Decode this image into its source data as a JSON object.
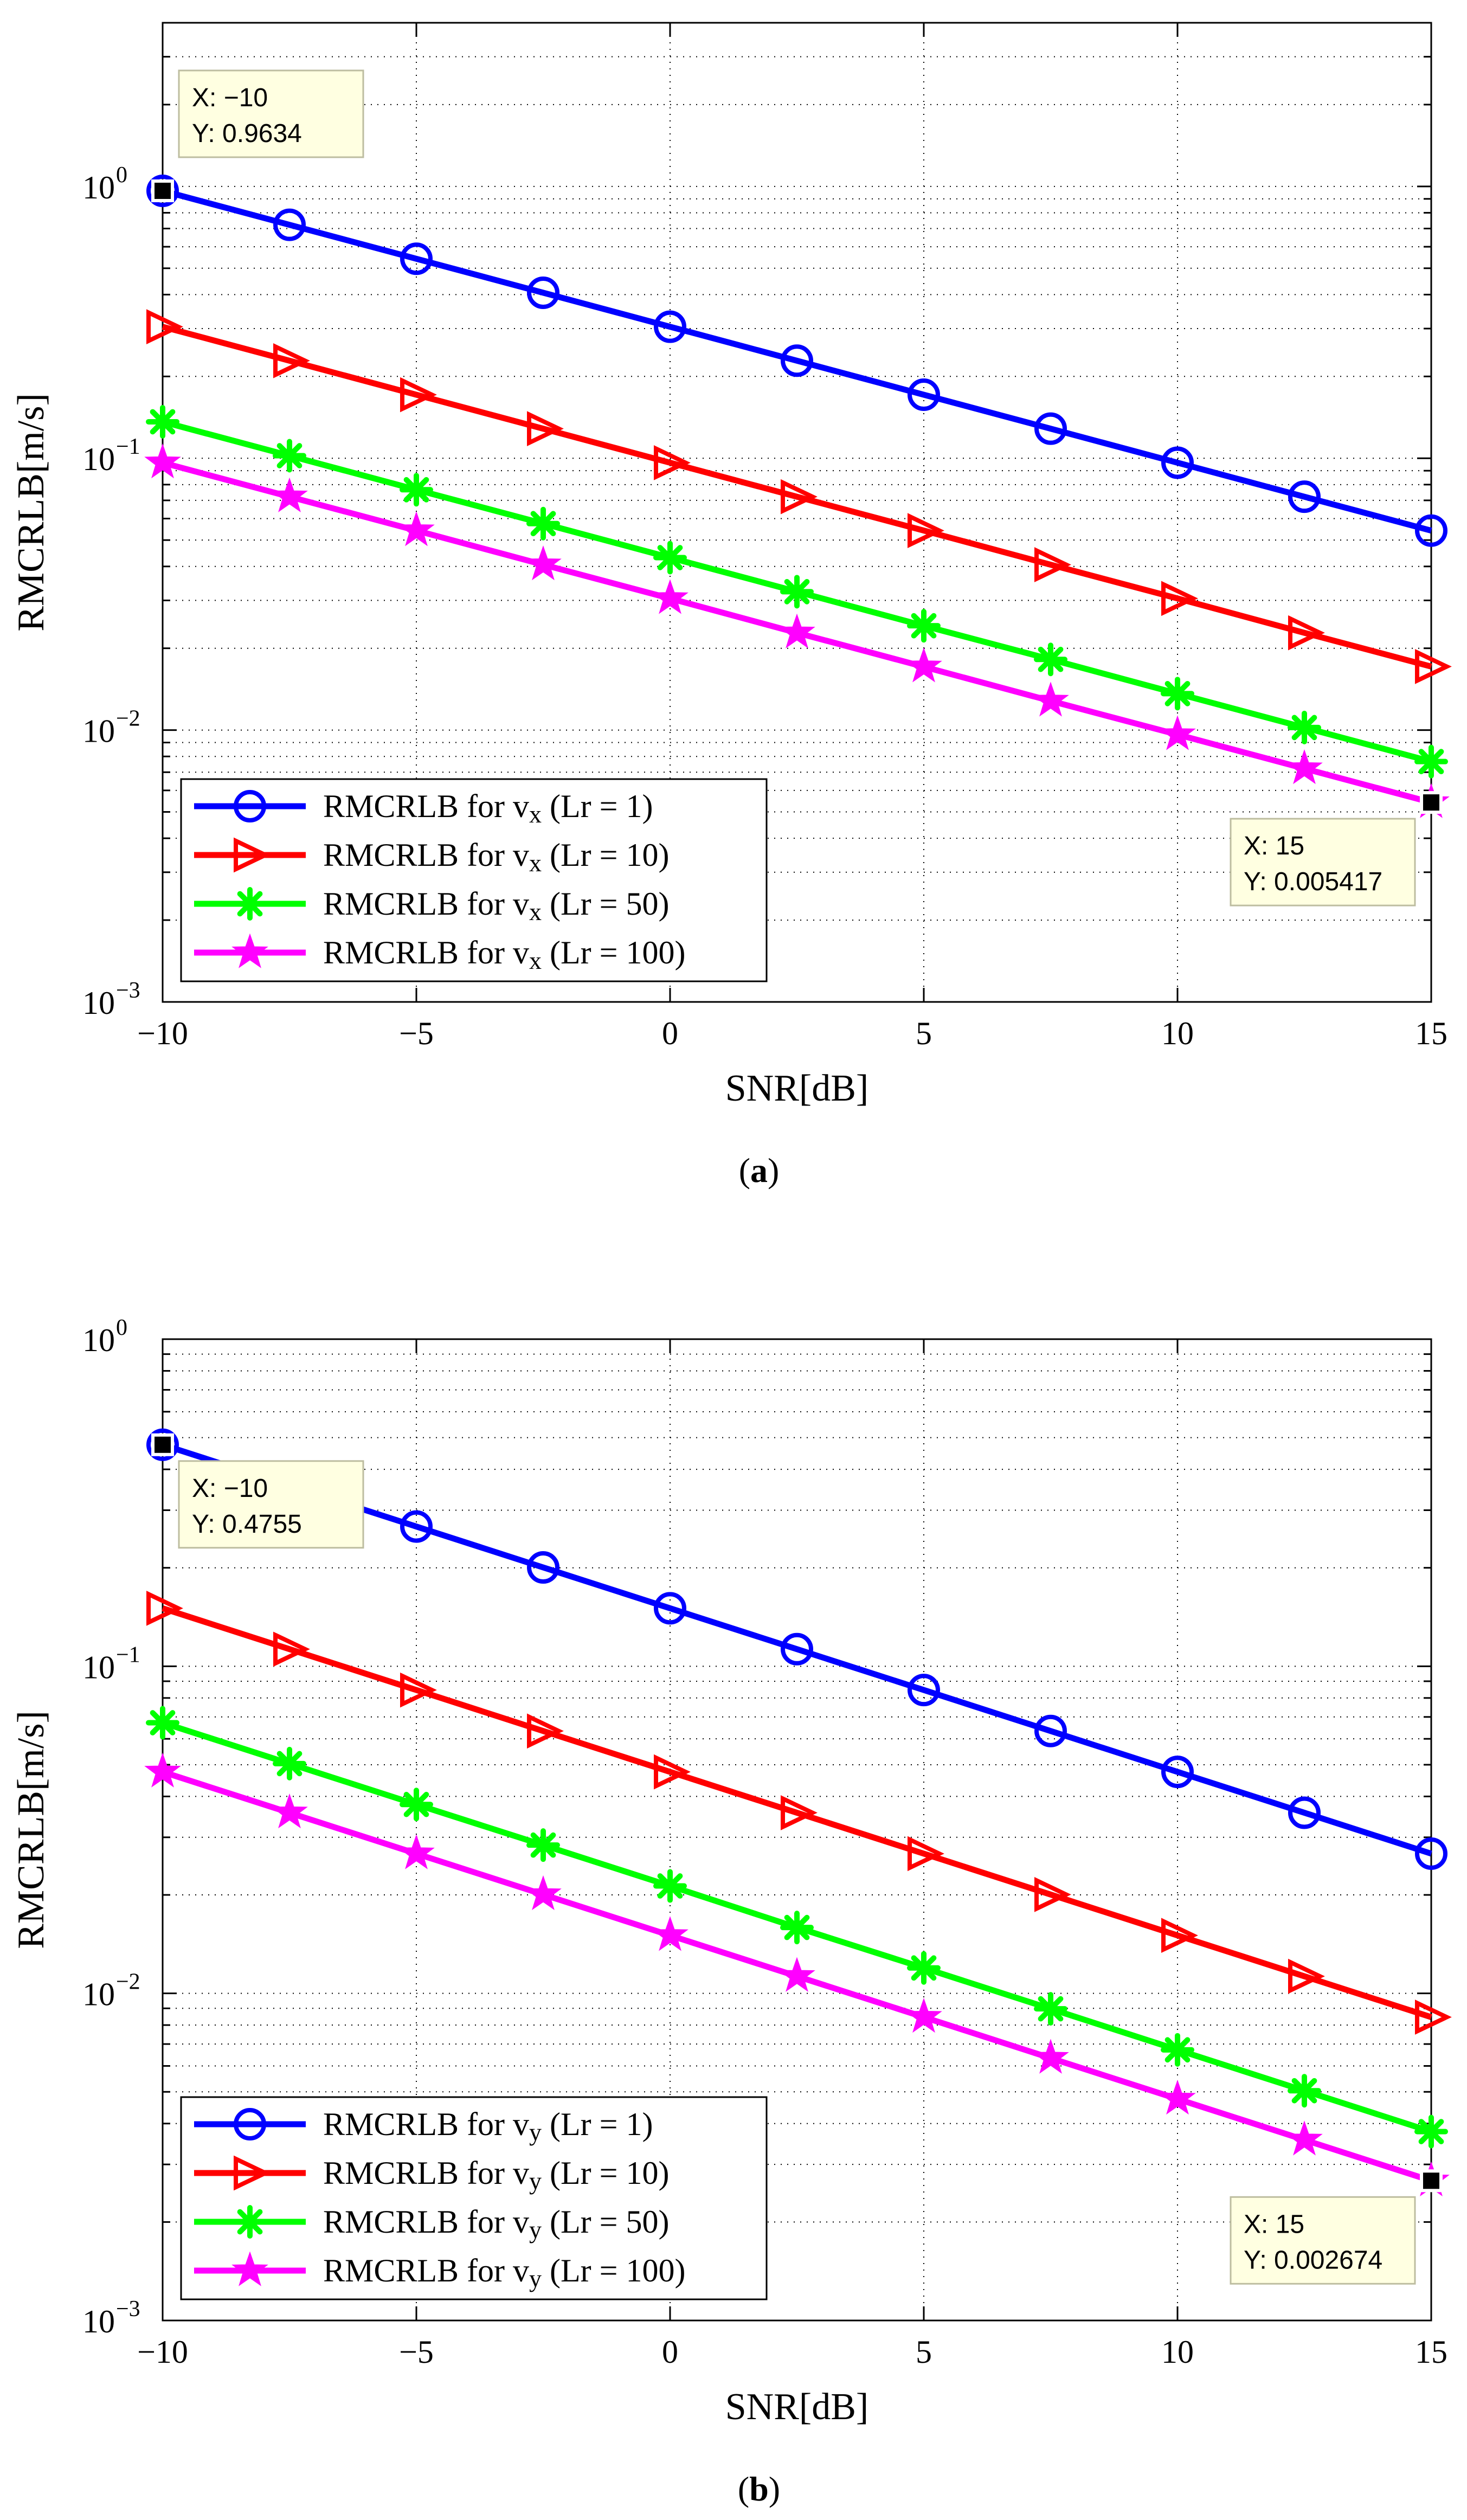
{
  "chart_data": [
    {
      "type": "line",
      "panel_label": "a",
      "xlabel": "SNR[dB]",
      "ylabel": "RMCRLB[m/s]",
      "x_scale": "linear",
      "y_scale": "log",
      "xlim": [
        -10,
        15
      ],
      "ylim": [
        0.001,
        4
      ],
      "xticks": [
        "−10",
        "−5",
        "0",
        "5",
        "10",
        "15"
      ],
      "xtick_values": [
        -10,
        -5,
        0,
        5,
        10,
        15
      ],
      "yticks": [
        "10",
        "10",
        "10",
        "10"
      ],
      "ytick_exponents": [
        "−3",
        "−2",
        "−1",
        "0"
      ],
      "ytick_values": [
        0.001,
        0.01,
        0.1,
        1
      ],
      "grid": true,
      "legend_position": "bottom-left",
      "x": [
        -10,
        -7.5,
        -5,
        -2.5,
        0,
        2.5,
        5,
        7.5,
        10,
        12.5,
        15
      ],
      "series": [
        {
          "name": "RMCRLB for vx (Lr = 1)",
          "label_main": "RMCRLB for v",
          "label_sub": "x",
          "label_tail": " (Lr = 1)",
          "color": "#0000ff",
          "marker": "circle",
          "values": [
            0.9634,
            0.7225,
            0.5418,
            0.4063,
            0.3047,
            0.2285,
            0.1713,
            0.1285,
            0.0963,
            0.0722,
            0.05418
          ]
        },
        {
          "name": "RMCRLB for vx (Lr = 10)",
          "label_main": "RMCRLB for v",
          "label_sub": "x",
          "label_tail": " (Lr = 10)",
          "color": "#ff0000",
          "marker": "triangle-right",
          "values": [
            0.3047,
            0.2285,
            0.1713,
            0.1285,
            0.0963,
            0.0722,
            0.0542,
            0.0406,
            0.0305,
            0.0228,
            0.01713
          ]
        },
        {
          "name": "RMCRLB for vx (Lr = 50)",
          "label_main": "RMCRLB for v",
          "label_sub": "x",
          "label_tail": " (Lr = 50)",
          "color": "#00ff00",
          "marker": "asterisk",
          "values": [
            0.1362,
            0.1022,
            0.0766,
            0.0575,
            0.0431,
            0.0323,
            0.0242,
            0.0182,
            0.01362,
            0.01022,
            0.00766
          ]
        },
        {
          "name": "RMCRLB for vx (Lr = 100)",
          "label_main": "RMCRLB for v",
          "label_sub": "x",
          "label_tail": " (Lr = 100)",
          "color": "#ff00ff",
          "marker": "star",
          "values": [
            0.0963,
            0.0722,
            0.0542,
            0.0406,
            0.0305,
            0.0228,
            0.0171,
            0.0128,
            0.00963,
            0.00722,
            0.005417
          ]
        }
      ],
      "datatips": [
        {
          "x_text": "X: −10",
          "y_text": "Y: 0.9634",
          "x": -10,
          "y": 0.9634,
          "box_anchor": "above-right"
        },
        {
          "x_text": "X: 15",
          "y_text": "Y: 0.005417",
          "x": 15,
          "y": 0.005417,
          "box_anchor": "below-left"
        }
      ]
    },
    {
      "type": "line",
      "panel_label": "b",
      "xlabel": "SNR[dB]",
      "ylabel": "RMCRLB[m/s]",
      "x_scale": "linear",
      "y_scale": "log",
      "xlim": [
        -10,
        15
      ],
      "ylim": [
        0.001,
        1
      ],
      "xticks": [
        "−10",
        "−5",
        "0",
        "5",
        "10",
        "15"
      ],
      "xtick_values": [
        -10,
        -5,
        0,
        5,
        10,
        15
      ],
      "yticks": [
        "10",
        "10",
        "10",
        "10"
      ],
      "ytick_exponents": [
        "−3",
        "−2",
        "−1",
        "0"
      ],
      "ytick_values": [
        0.001,
        0.01,
        0.1,
        1
      ],
      "grid": true,
      "legend_position": "bottom-left",
      "x": [
        -10,
        -7.5,
        -5,
        -2.5,
        0,
        2.5,
        5,
        7.5,
        10,
        12.5,
        15
      ],
      "series": [
        {
          "name": "RMCRLB for vy (Lr = 1)",
          "label_main": "RMCRLB for v",
          "label_sub": "y",
          "label_tail": " (Lr = 1)",
          "color": "#0000ff",
          "marker": "circle",
          "values": [
            0.4755,
            0.3566,
            0.2674,
            0.2005,
            0.1504,
            0.1128,
            0.0846,
            0.0634,
            0.04755,
            0.03566,
            0.02674
          ]
        },
        {
          "name": "RMCRLB for vy (Lr = 10)",
          "label_main": "RMCRLB for v",
          "label_sub": "y",
          "label_tail": " (Lr = 10)",
          "color": "#ff0000",
          "marker": "triangle-right",
          "values": [
            0.1504,
            0.1128,
            0.0846,
            0.0634,
            0.04755,
            0.03566,
            0.02674,
            0.02005,
            0.01504,
            0.01128,
            0.00846
          ]
        },
        {
          "name": "RMCRLB for vy (Lr = 50)",
          "label_main": "RMCRLB for v",
          "label_sub": "y",
          "label_tail": " (Lr = 50)",
          "color": "#00ff00",
          "marker": "asterisk",
          "values": [
            0.0672,
            0.0504,
            0.0378,
            0.0284,
            0.0213,
            0.0159,
            0.01196,
            0.00897,
            0.00672,
            0.00504,
            0.00378
          ]
        },
        {
          "name": "RMCRLB for vy (Lr = 100)",
          "label_main": "RMCRLB for v",
          "label_sub": "y",
          "label_tail": " (Lr = 100)",
          "color": "#ff00ff",
          "marker": "star",
          "values": [
            0.04755,
            0.03566,
            0.02674,
            0.02005,
            0.01504,
            0.01128,
            0.00846,
            0.00634,
            0.004755,
            0.003566,
            0.002674
          ]
        }
      ],
      "datatips": [
        {
          "x_text": "X: −10",
          "y_text": "Y: 0.4755",
          "x": -10,
          "y": 0.4755,
          "box_anchor": "below-right"
        },
        {
          "x_text": "X: 15",
          "y_text": "Y: 0.002674",
          "x": 15,
          "y": 0.002674,
          "box_anchor": "below-left"
        }
      ]
    }
  ]
}
